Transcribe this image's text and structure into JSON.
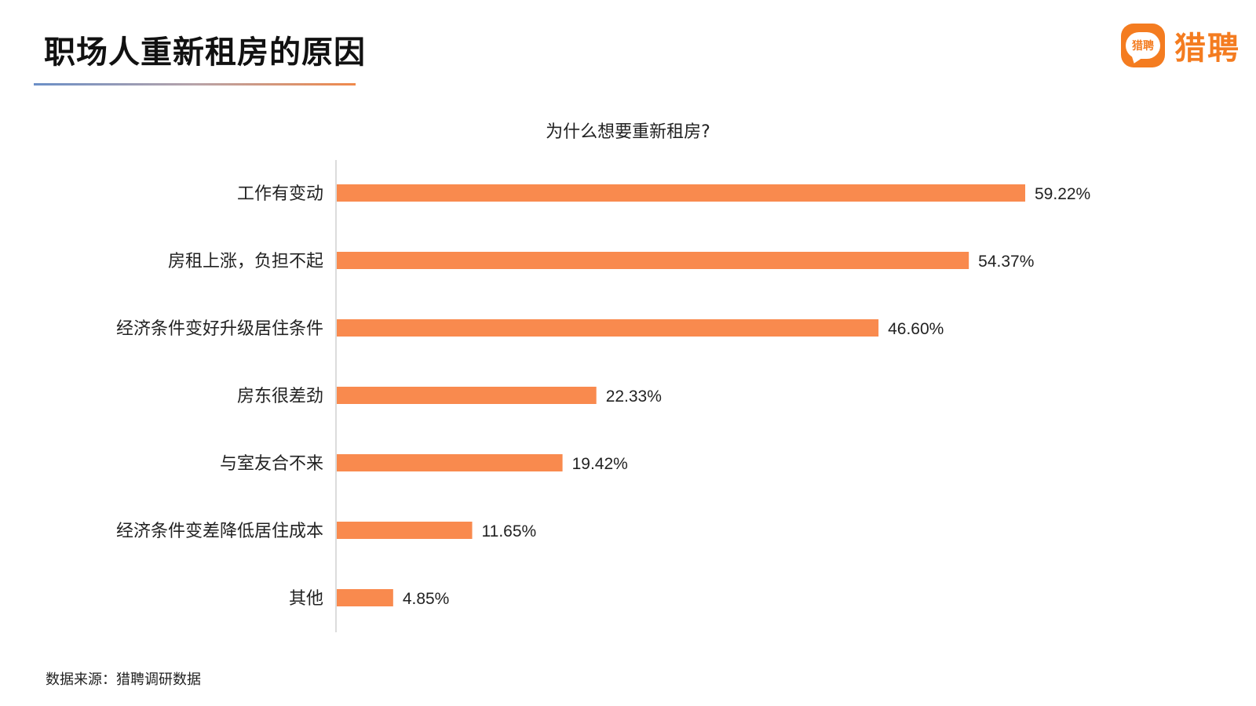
{
  "page": {
    "title": "职场人重新租房的原因",
    "source": "数据来源：猎聘调研数据"
  },
  "brand": {
    "icon_text": "猎聘",
    "name": "猎聘",
    "color": "#f47c20"
  },
  "chart_data": {
    "type": "bar",
    "orientation": "horizontal",
    "title": "为什么想要重新租房?",
    "categories": [
      "工作有变动",
      "房租上涨，负担不起",
      "经济条件变好升级居住条件",
      "房东很差劲",
      "与室友合不来",
      "经济条件变差降低居住成本",
      "其他"
    ],
    "values": [
      59.22,
      54.37,
      46.6,
      22.33,
      19.42,
      11.65,
      4.85
    ],
    "data_labels": [
      "59.22%",
      "54.37%",
      "46.60%",
      "22.33%",
      "19.42%",
      "11.65%",
      "4.85%"
    ],
    "xlim": [
      0,
      60
    ],
    "bar_color": "#f98a4e",
    "grid": false,
    "legend": "none"
  }
}
